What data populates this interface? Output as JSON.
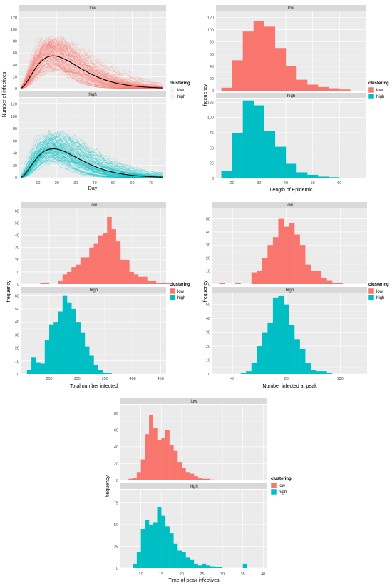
{
  "colors": {
    "low": "#f8766d",
    "high": "#00bfc4",
    "mean": "#000000",
    "strip": "#d9d9d9",
    "panel": "#ebebeb"
  },
  "legend": {
    "title": "clustering",
    "items": [
      "low",
      "high"
    ]
  },
  "strip_labels": {
    "low": "low",
    "high": "high"
  },
  "chart_data": [
    {
      "type": "line",
      "xlabel": "Day",
      "ylabel": "Number of infectives",
      "xlim": [
        0,
        78
      ],
      "ylim": [
        0,
        130
      ],
      "xticks": [
        10,
        20,
        30,
        40,
        50,
        60,
        70
      ],
      "yticks": [
        0,
        20,
        40,
        60,
        80,
        100,
        120
      ],
      "series": [
        {
          "name": "low",
          "mean_peak_day": 18,
          "mean_peak": 55,
          "max_envelope": 102
        },
        {
          "name": "high",
          "mean_peak_day": 18,
          "mean_peak": 47,
          "max_envelope": 98
        }
      ]
    },
    {
      "type": "bar",
      "xlabel": "Length of Epidemic",
      "ylabel": "frequency",
      "xlim": [
        14,
        70
      ],
      "ylim": [
        0,
        130
      ],
      "xticks": [
        20,
        30,
        40,
        50,
        60
      ],
      "yticks_low": [
        0,
        20,
        40,
        60,
        80,
        100,
        120
      ],
      "yticks_high": [
        0,
        25,
        50,
        75,
        100,
        125
      ],
      "bin_start": 16,
      "bin_width": 4,
      "series": [
        {
          "name": "low",
          "values": [
            5,
            50,
            97,
            114,
            105,
            70,
            40,
            18,
            10,
            6,
            4,
            2,
            0
          ]
        },
        {
          "name": "high",
          "values": [
            12,
            75,
            128,
            120,
            78,
            52,
            24,
            10,
            6,
            3,
            2,
            1,
            1
          ]
        }
      ]
    },
    {
      "type": "bar",
      "xlabel": "Total number infected",
      "ylabel": "frequency",
      "xlim": [
        200,
        460
      ],
      "ylim": [
        0,
        62
      ],
      "xticks": [
        250,
        300,
        350,
        400,
        450
      ],
      "yticks": [
        0,
        10,
        20,
        30,
        40,
        50,
        60
      ],
      "bin_start": 210,
      "bin_width": 8,
      "series": [
        {
          "name": "low",
          "values": [
            0,
            0,
            0,
            1,
            1,
            0,
            0,
            3,
            8,
            10,
            14,
            16,
            22,
            22,
            30,
            33,
            40,
            42,
            55,
            45,
            35,
            20,
            20,
            10,
            8,
            6,
            6,
            3,
            3,
            1,
            1,
            1
          ]
        },
        {
          "name": "high",
          "values": [
            3,
            13,
            9,
            8,
            26,
            38,
            40,
            48,
            60,
            55,
            50,
            40,
            32,
            21,
            14,
            7,
            3,
            1,
            1,
            0,
            0,
            0,
            0,
            0,
            0,
            0,
            0,
            0,
            0,
            0,
            0,
            0
          ]
        }
      ]
    },
    {
      "type": "bar",
      "xlabel": "Number infected at peak",
      "ylabel": "frequency",
      "xlim": [
        25,
        140
      ],
      "ylim": [
        0,
        58
      ],
      "xticks": [
        40,
        80,
        120
      ],
      "yticks_low": [
        0,
        10,
        20,
        30,
        40,
        50
      ],
      "yticks_high": [
        0,
        10,
        20,
        30,
        40,
        50
      ],
      "bin_start": 30,
      "bin_width": 4,
      "series": [
        {
          "name": "low",
          "values": [
            1,
            0,
            0,
            1,
            0,
            0,
            9,
            10,
            20,
            30,
            36,
            50,
            44,
            47,
            38,
            30,
            15,
            10,
            10,
            5,
            3,
            1,
            1,
            0,
            0
          ]
        },
        {
          "name": "high",
          "values": [
            0,
            0,
            0,
            0,
            1,
            2,
            8,
            20,
            30,
            37,
            55,
            56,
            50,
            35,
            25,
            18,
            8,
            3,
            2,
            2,
            1,
            0,
            0,
            0,
            0
          ]
        }
      ]
    },
    {
      "type": "bar",
      "xlabel": "Time of peak infectives",
      "ylabel": "frequency",
      "xlim": [
        5,
        41
      ],
      "ylim": [
        0,
        90
      ],
      "xticks": [
        10,
        15,
        20,
        25,
        30,
        35,
        40
      ],
      "yticks_low": [
        0,
        20,
        40,
        60,
        80
      ],
      "yticks_high": [
        0,
        25,
        50,
        75
      ],
      "bin_start": 7,
      "bin_width": 1,
      "series": [
        {
          "name": "low",
          "values": [
            2,
            3,
            10,
            25,
            55,
            78,
            62,
            48,
            50,
            60,
            42,
            35,
            22,
            15,
            10,
            8,
            5,
            3,
            2,
            2,
            1,
            0,
            0,
            0,
            0,
            0,
            0,
            0,
            0,
            0,
            0,
            0
          ]
        },
        {
          "name": "high",
          "values": [
            0,
            5,
            18,
            45,
            55,
            50,
            52,
            70,
            60,
            48,
            40,
            28,
            20,
            18,
            12,
            10,
            5,
            3,
            5,
            3,
            2,
            1,
            1,
            0,
            0,
            0,
            0,
            0,
            5,
            0,
            0,
            0
          ]
        }
      ]
    }
  ]
}
